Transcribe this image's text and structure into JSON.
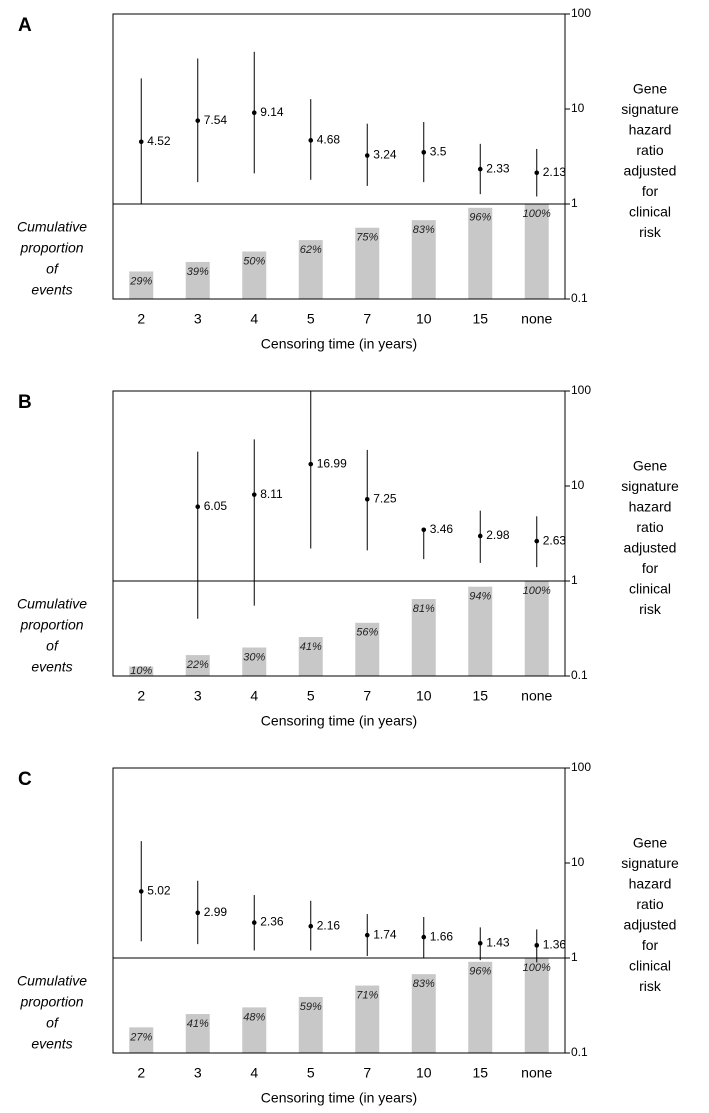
{
  "chart_data": [
    {
      "type": "combo",
      "label": "A",
      "categories": [
        "2",
        "3",
        "4",
        "5",
        "7",
        "10",
        "15",
        "none"
      ],
      "values": [
        4.52,
        7.54,
        9.14,
        4.68,
        3.24,
        3.5,
        2.33,
        2.13
      ],
      "ci_lower": [
        1.0,
        1.7,
        2.1,
        1.8,
        1.55,
        1.7,
        1.27,
        1.2
      ],
      "ci_upper": [
        21,
        34,
        40,
        12.7,
        7,
        7.3,
        4.3,
        3.8
      ],
      "proportions": [
        29,
        39,
        50,
        62,
        75,
        83,
        96,
        100
      ],
      "proportion_labels": [
        "29%",
        "39%",
        "50%",
        "62%",
        "75%",
        "83%",
        "96%",
        "100%"
      ],
      "proportion_lim": [
        0,
        100
      ],
      "color": "#000000",
      "bar_color": "#c8c8c8",
      "ylim": [
        0.1,
        100
      ],
      "yticks": [
        0.1,
        1,
        10,
        100
      ],
      "log_scale": true,
      "ylabel_lines": [
        "Gene",
        "signature",
        "hazard",
        "ratio",
        "adjusted",
        "for",
        "clinical",
        "risk"
      ],
      "bar_label_lines": [
        "Cumulative",
        "proportion",
        "of",
        "events"
      ],
      "xlabel": "Censoring time (in years)"
    },
    {
      "type": "combo",
      "label": "B",
      "categories": [
        "2",
        "3",
        "4",
        "5",
        "7",
        "10",
        "15",
        "none"
      ],
      "values": [
        null,
        6.05,
        8.11,
        16.99,
        7.25,
        3.46,
        2.98,
        2.63
      ],
      "ci_lower": [
        null,
        0.4,
        0.55,
        2.2,
        2.1,
        1.7,
        1.55,
        1.4
      ],
      "ci_upper": [
        null,
        23,
        31,
        100,
        24,
        3.6,
        5.5,
        4.8
      ],
      "proportions": [
        10,
        22,
        30,
        41,
        56,
        81,
        94,
        100
      ],
      "proportion_labels": [
        "10%",
        "22%",
        "30%",
        "41%",
        "56%",
        "81%",
        "94%",
        "100%"
      ],
      "proportion_lim": [
        0,
        100
      ],
      "color": "#000000",
      "bar_color": "#c8c8c8",
      "ylim": [
        0.1,
        100
      ],
      "yticks": [
        0.1,
        1,
        10,
        100
      ],
      "log_scale": true,
      "ylabel_lines": [
        "Gene",
        "signature",
        "hazard",
        "ratio",
        "adjusted",
        "for",
        "clinical",
        "risk"
      ],
      "bar_label_lines": [
        "Cumulative",
        "proportion",
        "of",
        "events"
      ],
      "xlabel": "Censoring time (in years)"
    },
    {
      "type": "combo",
      "label": "C",
      "categories": [
        "2",
        "3",
        "4",
        "5",
        "7",
        "10",
        "15",
        "none"
      ],
      "values": [
        5.02,
        2.99,
        2.36,
        2.16,
        1.74,
        1.66,
        1.43,
        1.36
      ],
      "ci_lower": [
        1.5,
        1.4,
        1.2,
        1.2,
        1.05,
        1.0,
        0.95,
        0.9
      ],
      "ci_upper": [
        17,
        6.5,
        4.6,
        4,
        2.9,
        2.7,
        2.1,
        2.0
      ],
      "proportions": [
        27,
        41,
        48,
        59,
        71,
        83,
        96,
        100
      ],
      "proportion_labels": [
        "27%",
        "41%",
        "48%",
        "59%",
        "71%",
        "83%",
        "96%",
        "100%"
      ],
      "proportion_lim": [
        0,
        100
      ],
      "color": "#000000",
      "bar_color": "#c8c8c8",
      "ylim": [
        0.1,
        100
      ],
      "yticks": [
        0.1,
        1,
        10,
        100
      ],
      "log_scale": true,
      "ylabel_lines": [
        "Gene",
        "signature",
        "hazard",
        "ratio",
        "adjusted",
        "for",
        "clinical",
        "risk"
      ],
      "bar_label_lines": [
        "Cumulative",
        "proportion",
        "of",
        "events"
      ],
      "xlabel": "Censoring time (in years)"
    }
  ]
}
